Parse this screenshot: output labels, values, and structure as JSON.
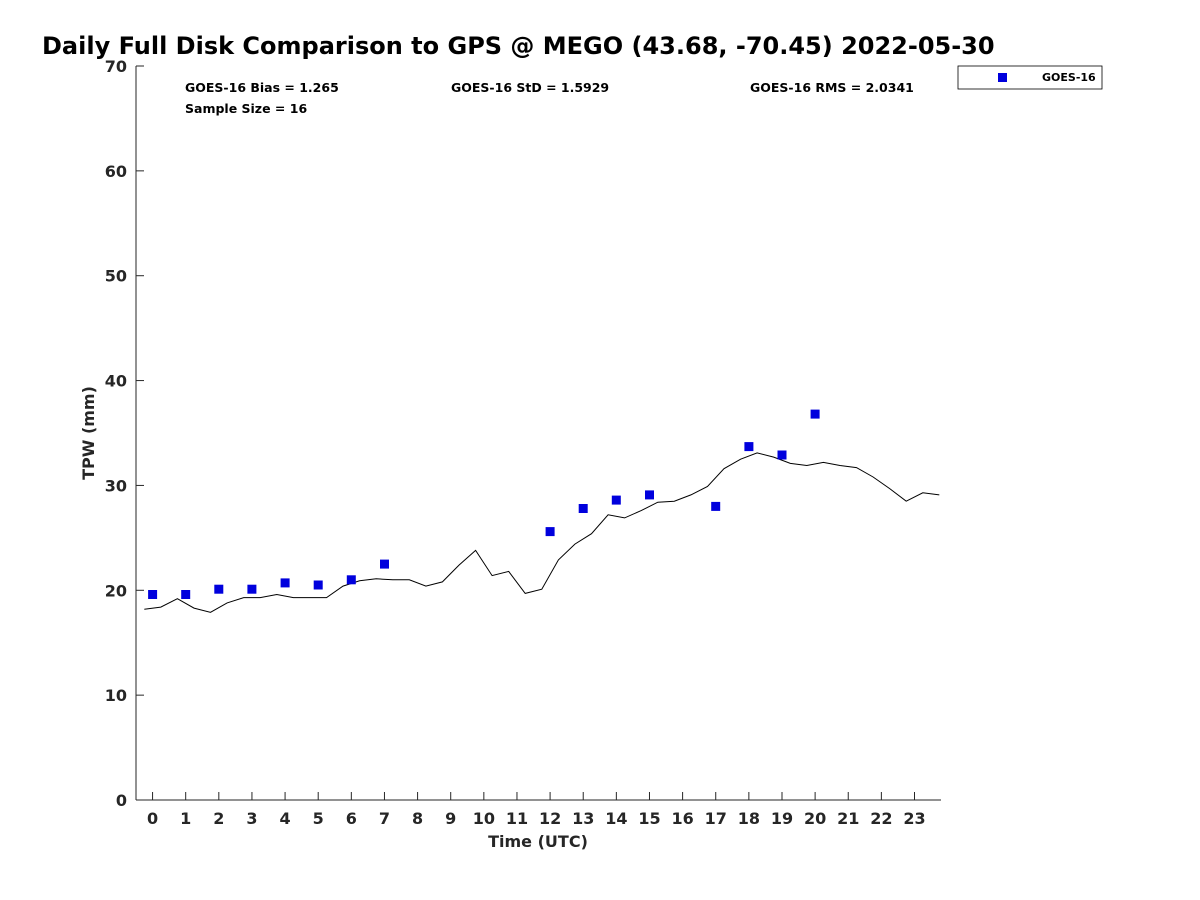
{
  "chart_data": {
    "type": "scatter",
    "title": "Daily Full Disk Comparison to GPS @ MEGO (43.68, -70.45) 2022-05-30",
    "xlabel": "Time (UTC)",
    "ylabel": "TPW (mm)",
    "xlim": [
      -0.5,
      23.8
    ],
    "ylim": [
      0,
      70
    ],
    "x_ticks": [
      0,
      1,
      2,
      3,
      4,
      5,
      6,
      7,
      8,
      9,
      10,
      11,
      12,
      13,
      14,
      15,
      16,
      17,
      18,
      19,
      20,
      21,
      22,
      23
    ],
    "x_tick_labels": [
      "0",
      "1",
      "2",
      "3",
      "4",
      "5",
      "6",
      "7",
      "8",
      "9",
      "10",
      "11",
      "12",
      "13",
      "14",
      "15",
      "16",
      "17",
      "18",
      "19",
      "20",
      "21",
      "22",
      "23"
    ],
    "y_ticks": [
      0,
      10,
      20,
      30,
      40,
      50,
      60,
      70
    ],
    "y_tick_labels": [
      "0",
      "10",
      "20",
      "30",
      "40",
      "50",
      "60",
      "70"
    ],
    "grid": false,
    "legend_position": "top-right outside",
    "stats": {
      "bias": "GOES-16 Bias = 1.265",
      "std": "GOES-16 StD = 1.5929",
      "rms": "GOES-16 RMS = 2.0341",
      "sample_size": "Sample Size = 16"
    },
    "series": [
      {
        "name": "GOES-16",
        "kind": "scatter",
        "marker": "square",
        "color": "#0000dd",
        "x": [
          0,
          1,
          2,
          3,
          4,
          5,
          6,
          7,
          12,
          13,
          14,
          15,
          17,
          18,
          19,
          20
        ],
        "y": [
          19.6,
          19.6,
          20.1,
          20.1,
          20.7,
          20.5,
          21.0,
          22.5,
          25.6,
          27.8,
          28.6,
          29.1,
          28.0,
          33.7,
          32.9,
          36.8
        ]
      },
      {
        "kind": "line",
        "color": "#000000",
        "x": [
          -0.25,
          0.25,
          0.75,
          1.25,
          1.75,
          2.25,
          2.75,
          3.25,
          3.75,
          4.25,
          4.75,
          5.25,
          5.75,
          6.25,
          6.75,
          7.25,
          7.75,
          8.25,
          8.75,
          9.25,
          9.75,
          10.25,
          10.75,
          11.25,
          11.75,
          12.25,
          12.75,
          13.25,
          13.75,
          14.25,
          14.75,
          15.25,
          15.75,
          16.25,
          16.75,
          17.25,
          17.75,
          18.25,
          18.75,
          19.25,
          19.75,
          20.25,
          20.75,
          21.25,
          21.75,
          22.25,
          22.75,
          23.25,
          23.75
        ],
        "y": [
          18.2,
          18.4,
          19.2,
          18.3,
          17.9,
          18.8,
          19.3,
          19.3,
          19.6,
          19.3,
          19.3,
          19.3,
          20.4,
          20.9,
          21.1,
          21.0,
          21.0,
          20.4,
          20.8,
          22.4,
          23.8,
          21.4,
          21.8,
          19.7,
          20.1,
          22.9,
          24.4,
          25.4,
          27.2,
          26.9,
          27.6,
          28.4,
          28.5,
          29.1,
          29.9,
          31.6,
          32.5,
          33.1,
          32.7,
          32.1,
          31.9,
          32.2,
          31.9,
          31.7,
          30.8,
          29.7,
          28.5,
          29.3,
          29.1
        ]
      }
    ]
  }
}
